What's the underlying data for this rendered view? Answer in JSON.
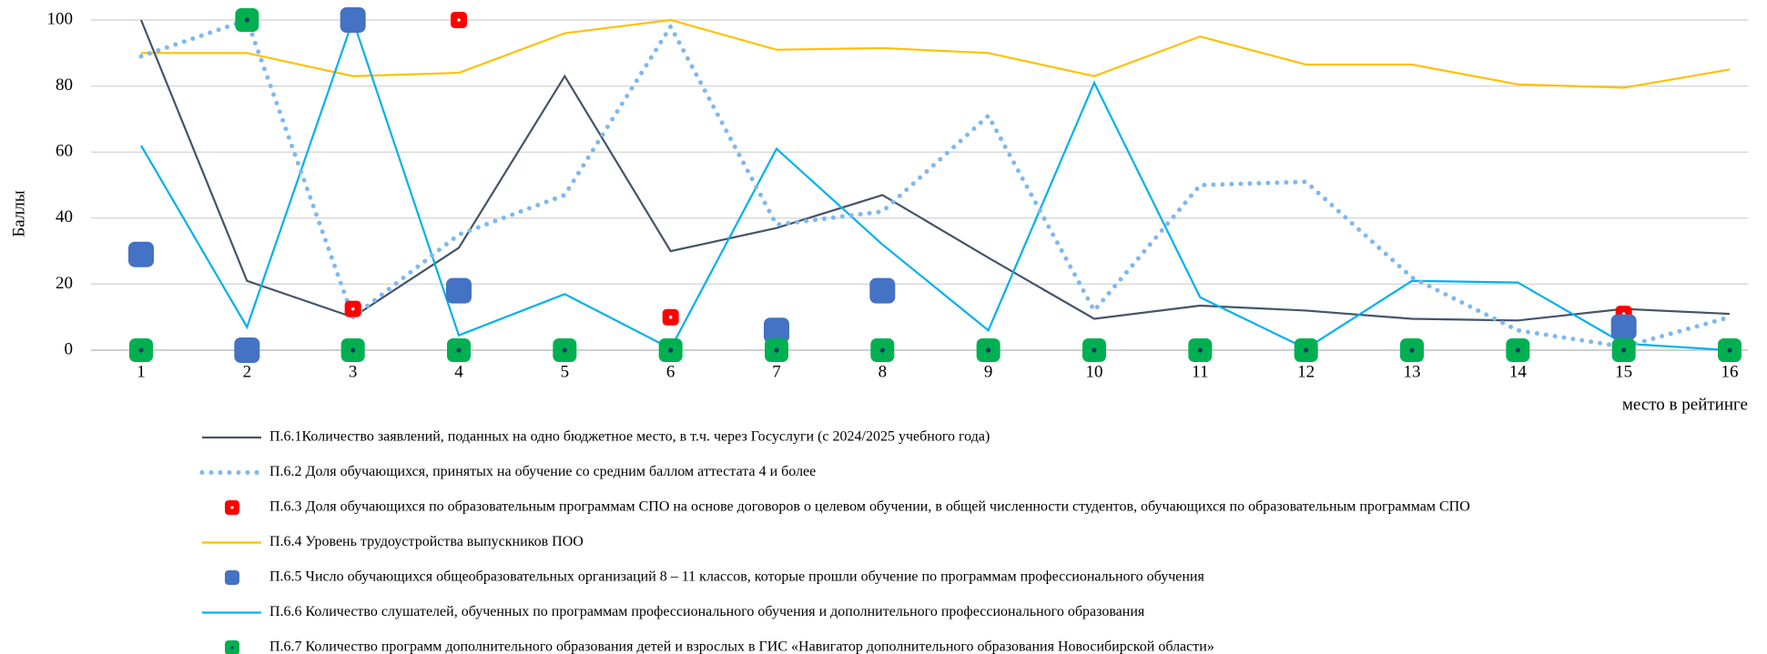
{
  "chart_data": {
    "type": "line",
    "y_label": "Баллы",
    "x_label": "место в рейтинге",
    "categories": [
      "1",
      "2",
      "3",
      "4",
      "5",
      "6",
      "7",
      "8",
      "9",
      "10",
      "11",
      "12",
      "13",
      "14",
      "15",
      "16"
    ],
    "ylim": [
      0,
      100
    ],
    "yticks": [
      0,
      20,
      40,
      60,
      80,
      100
    ],
    "grid": true,
    "series": [
      {
        "name": "П.6.1Количество заявлений, поданных на одно бюджетное место, в т.ч. через Госуслуги (с 2024/2025 учебного года)",
        "color": "#44546a",
        "style": "solid",
        "values": [
          100,
          21,
          10,
          31,
          83,
          30,
          37,
          47,
          28,
          9.5,
          13.5,
          12,
          9.5,
          9,
          12.5,
          11
        ]
      },
      {
        "name": "П.6.2 Доля обучающихся, принятых на обучение со средним баллом аттестата 4 и более",
        "color": "#7eb8ef",
        "style": "dotted",
        "values": [
          89,
          100,
          10,
          35,
          47,
          98,
          38,
          42,
          71,
          12,
          50,
          51,
          22,
          6,
          1,
          10
        ]
      },
      {
        "name": "П.6.3 Доля обучающихся по образовательным программам СПО на основе договоров о целевом обучении, в общей численности студентов, обучающихся по образовательным программам СПО",
        "color": "#ff0000",
        "style": "marker",
        "marker_size": 18,
        "dot_color": "#ffffff",
        "values": [
          null,
          null,
          12.5,
          100,
          null,
          10,
          null,
          null,
          null,
          null,
          null,
          null,
          null,
          null,
          11,
          null
        ]
      },
      {
        "name": "П.6.4 Уровень трудоустройства выпускников ПОО",
        "color": "#ffc000",
        "style": "solid",
        "values": [
          90,
          90,
          83,
          84,
          96,
          100,
          91,
          91.5,
          90,
          83,
          95,
          86.5,
          86.5,
          80.5,
          79.5,
          85
        ]
      },
      {
        "name": "П.6.5 Число обучающихся общеобразовательных организаций 8 – 11 классов, которые прошли обучение по программам профессионального обучения",
        "color": "#4472c4",
        "style": "marker",
        "marker_size": 28,
        "dot_color": "#4472c4",
        "values": [
          29,
          0,
          100,
          18,
          null,
          null,
          6,
          18,
          null,
          null,
          null,
          null,
          null,
          null,
          7,
          null
        ]
      },
      {
        "name": "П.6.6 Количество слушателей, обученных по программам профессионального обучения и дополнительного профессионального образования",
        "color": "#00b0f0",
        "style": "solid",
        "values": [
          62,
          7,
          100,
          4.5,
          17,
          0.5,
          61,
          32,
          6,
          81,
          16,
          0.5,
          21,
          20.5,
          2,
          0
        ]
      },
      {
        "name": "П.6.7 Количество программ дополнительного образования детей и взрослых в ГИС «Навигатор дополнительного образования Новосибирской области»",
        "color": "#00b050",
        "style": "marker",
        "marker_size": 26,
        "dot_color": "#203864",
        "values": [
          0,
          100,
          0,
          0,
          0,
          0,
          0,
          0,
          0,
          0,
          0,
          0,
          0,
          0,
          0,
          0
        ]
      }
    ]
  }
}
